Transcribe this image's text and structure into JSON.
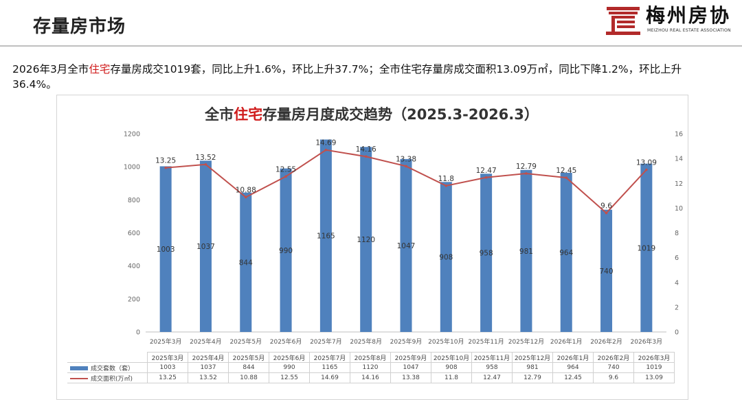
{
  "header": {
    "title": "存量房市场",
    "logo_name": "梅州房协",
    "logo_sub": "MEIZHOU REAL ESTATE ASSOCIATION"
  },
  "summary": {
    "part1": "2026年3月全市",
    "highlight": "住宅",
    "part2": "存量房成交1019套，同比上升1.6%，环比上升37.7%；全市住宅存量房成交面积13.09万㎡，同比下降1.2%，环比上升36.4%。"
  },
  "colors": {
    "bar": "#4f81bd",
    "line": "#c0504d",
    "highlight": "#d01c1c"
  },
  "chart_data": {
    "type": "bar",
    "title_prefix": "全市",
    "title_highlight": "住宅",
    "title_suffix": "存量房月度成交趋势（2025.3-2026.3）",
    "categories": [
      "2025年3月",
      "2025年4月",
      "2025年5月",
      "2025年6月",
      "2025年7月",
      "2025年8月",
      "2025年9月",
      "2025年10月",
      "2025年11月",
      "2025年12月",
      "2026年1月",
      "2026年2月",
      "2026年3月"
    ],
    "series": [
      {
        "name": "成交套数（套）",
        "type": "bar",
        "axis": "left",
        "values": [
          1003,
          1037,
          844,
          990,
          1165,
          1120,
          1047,
          908,
          958,
          981,
          964,
          740,
          1019
        ]
      },
      {
        "name": "成交面积(万㎡)",
        "type": "line",
        "axis": "right",
        "values": [
          13.25,
          13.52,
          10.88,
          12.55,
          14.69,
          14.16,
          13.38,
          11.8,
          12.47,
          12.79,
          12.45,
          9.6,
          13.09
        ],
        "labels": [
          "13.25",
          "13.52",
          "10.88",
          "12.55",
          "14.69",
          "14.16",
          "13.38",
          "11.8",
          "12.47",
          "12.79",
          "12.45",
          "9.6",
          "13.09"
        ]
      }
    ],
    "ylim_left": [
      0,
      1200
    ],
    "yticks_left": [
      0,
      200,
      400,
      600,
      800,
      1000,
      1200
    ],
    "ylim_right": [
      0,
      16
    ],
    "yticks_right": [
      0,
      2,
      4,
      6,
      8,
      10,
      12,
      14,
      16
    ],
    "grid": false,
    "legend": "data-table-bottom"
  }
}
